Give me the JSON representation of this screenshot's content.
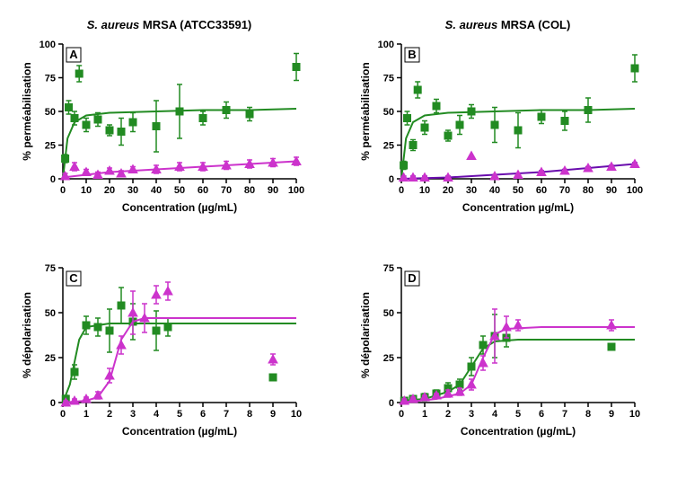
{
  "colors": {
    "green": "#228B22",
    "magenta": "#CC33CC",
    "purple": "#6A0DAD",
    "black": "#000000",
    "bg": "#ffffff"
  },
  "marker": {
    "square_size": 4,
    "triangle_size": 5
  },
  "panels": {
    "A": {
      "title_strain": "S. aureus",
      "title_rest": " MRSA (ATCC33591)",
      "letter": "A",
      "xlabel": "Concentration (µg/mL)",
      "ylabel": "% perméabilisation",
      "xlim": [
        0,
        100
      ],
      "xticks": [
        0,
        10,
        20,
        30,
        40,
        50,
        60,
        70,
        80,
        90,
        100
      ],
      "ylim": [
        0,
        100
      ],
      "yticks": [
        0,
        25,
        50,
        75,
        100
      ],
      "series": [
        {
          "name": "green",
          "color_key": "green",
          "marker": "square",
          "points": [
            {
              "x": 1,
              "y": 15,
              "el": 3,
              "eh": 3
            },
            {
              "x": 2.5,
              "y": 53,
              "el": 5,
              "eh": 5
            },
            {
              "x": 5,
              "y": 45,
              "el": 5,
              "eh": 5
            },
            {
              "x": 7,
              "y": 78,
              "el": 6,
              "eh": 6
            },
            {
              "x": 10,
              "y": 40,
              "el": 5,
              "eh": 5
            },
            {
              "x": 15,
              "y": 44,
              "el": 5,
              "eh": 5
            },
            {
              "x": 20,
              "y": 36,
              "el": 4,
              "eh": 4
            },
            {
              "x": 25,
              "y": 35,
              "el": 10,
              "eh": 10
            },
            {
              "x": 30,
              "y": 42,
              "el": 7,
              "eh": 7
            },
            {
              "x": 40,
              "y": 39,
              "el": 19,
              "eh": 19
            },
            {
              "x": 50,
              "y": 50,
              "el": 20,
              "eh": 20
            },
            {
              "x": 60,
              "y": 45,
              "el": 5,
              "eh": 5
            },
            {
              "x": 70,
              "y": 51,
              "el": 6,
              "eh": 6
            },
            {
              "x": 80,
              "y": 48,
              "el": 5,
              "eh": 5
            },
            {
              "x": 100,
              "y": 83,
              "el": 10,
              "eh": 10
            }
          ],
          "curve": [
            [
              0,
              0
            ],
            [
              2,
              30
            ],
            [
              5,
              42
            ],
            [
              10,
              47
            ],
            [
              20,
              49
            ],
            [
              40,
              50
            ],
            [
              60,
              51
            ],
            [
              80,
              51
            ],
            [
              100,
              52
            ]
          ]
        },
        {
          "name": "magenta",
          "color_key": "magenta",
          "marker": "triangle",
          "points": [
            {
              "x": 1,
              "y": 2,
              "el": 2,
              "eh": 2
            },
            {
              "x": 5,
              "y": 9,
              "el": 3,
              "eh": 3
            },
            {
              "x": 10,
              "y": 5,
              "el": 2,
              "eh": 2
            },
            {
              "x": 15,
              "y": 3,
              "el": 2,
              "eh": 2
            },
            {
              "x": 20,
              "y": 6,
              "el": 2,
              "eh": 2
            },
            {
              "x": 25,
              "y": 4,
              "el": 2,
              "eh": 2
            },
            {
              "x": 30,
              "y": 7,
              "el": 2,
              "eh": 2
            },
            {
              "x": 40,
              "y": 7,
              "el": 3,
              "eh": 3
            },
            {
              "x": 50,
              "y": 9,
              "el": 3,
              "eh": 3
            },
            {
              "x": 60,
              "y": 9,
              "el": 3,
              "eh": 3
            },
            {
              "x": 70,
              "y": 10,
              "el": 3,
              "eh": 3
            },
            {
              "x": 80,
              "y": 11,
              "el": 3,
              "eh": 3
            },
            {
              "x": 90,
              "y": 12,
              "el": 3,
              "eh": 3
            },
            {
              "x": 100,
              "y": 13,
              "el": 3,
              "eh": 3
            }
          ],
          "curve": [
            [
              0,
              1
            ],
            [
              20,
              5
            ],
            [
              40,
              7
            ],
            [
              60,
              9
            ],
            [
              80,
              11
            ],
            [
              100,
              13
            ]
          ]
        }
      ]
    },
    "B": {
      "title_strain": "S. aureus",
      "title_rest": " MRSA (COL)",
      "letter": "B",
      "xlabel": "Concentration µg/mL)",
      "ylabel": "% perméabilisation",
      "xlim": [
        0,
        100
      ],
      "xticks": [
        0,
        10,
        20,
        30,
        40,
        50,
        60,
        70,
        80,
        90,
        100
      ],
      "ylim": [
        0,
        100
      ],
      "yticks": [
        0,
        25,
        50,
        75,
        100
      ],
      "series": [
        {
          "name": "green",
          "color_key": "green",
          "marker": "square",
          "points": [
            {
              "x": 1,
              "y": 10,
              "el": 3,
              "eh": 3
            },
            {
              "x": 2.5,
              "y": 45,
              "el": 5,
              "eh": 5
            },
            {
              "x": 5,
              "y": 25,
              "el": 4,
              "eh": 4
            },
            {
              "x": 7,
              "y": 66,
              "el": 6,
              "eh": 6
            },
            {
              "x": 10,
              "y": 38,
              "el": 5,
              "eh": 5
            },
            {
              "x": 15,
              "y": 54,
              "el": 5,
              "eh": 5
            },
            {
              "x": 20,
              "y": 32,
              "el": 4,
              "eh": 4
            },
            {
              "x": 25,
              "y": 40,
              "el": 7,
              "eh": 7
            },
            {
              "x": 30,
              "y": 50,
              "el": 5,
              "eh": 5
            },
            {
              "x": 40,
              "y": 40,
              "el": 13,
              "eh": 13
            },
            {
              "x": 50,
              "y": 36,
              "el": 13,
              "eh": 13
            },
            {
              "x": 60,
              "y": 46,
              "el": 5,
              "eh": 5
            },
            {
              "x": 70,
              "y": 43,
              "el": 7,
              "eh": 7
            },
            {
              "x": 80,
              "y": 51,
              "el": 9,
              "eh": 9
            },
            {
              "x": 100,
              "y": 82,
              "el": 10,
              "eh": 10
            }
          ],
          "curve": [
            [
              0,
              0
            ],
            [
              2,
              30
            ],
            [
              5,
              42
            ],
            [
              10,
              47
            ],
            [
              20,
              49
            ],
            [
              40,
              50
            ],
            [
              60,
              51
            ],
            [
              80,
              51
            ],
            [
              100,
              52
            ]
          ]
        },
        {
          "name": "purple",
          "color_key": "purple",
          "marker": "triangle",
          "fill_key": "magenta",
          "points": [
            {
              "x": 1,
              "y": 1,
              "el": 1,
              "eh": 1
            },
            {
              "x": 5,
              "y": 1,
              "el": 1,
              "eh": 1
            },
            {
              "x": 10,
              "y": 1,
              "el": 1,
              "eh": 1
            },
            {
              "x": 20,
              "y": 1,
              "el": 1,
              "eh": 1
            },
            {
              "x": 30,
              "y": 17,
              "el": 0,
              "eh": 0
            },
            {
              "x": 40,
              "y": 2,
              "el": 1,
              "eh": 1
            },
            {
              "x": 50,
              "y": 3,
              "el": 1,
              "eh": 1
            },
            {
              "x": 60,
              "y": 5,
              "el": 1,
              "eh": 1
            },
            {
              "x": 70,
              "y": 6,
              "el": 1,
              "eh": 1
            },
            {
              "x": 80,
              "y": 8,
              "el": 1,
              "eh": 1
            },
            {
              "x": 90,
              "y": 9,
              "el": 1,
              "eh": 1
            },
            {
              "x": 100,
              "y": 11,
              "el": 1,
              "eh": 1
            }
          ],
          "curve": [
            [
              0,
              0
            ],
            [
              20,
              1
            ],
            [
              40,
              3
            ],
            [
              60,
              5
            ],
            [
              80,
              8
            ],
            [
              100,
              11
            ]
          ]
        }
      ]
    },
    "C": {
      "title_strain": "",
      "title_rest": "",
      "letter": "C",
      "xlabel": "Concentration (µg/mL)",
      "ylabel": "% dépolarisation",
      "xlim": [
        0,
        10
      ],
      "xticks": [
        0,
        1,
        2,
        3,
        4,
        5,
        6,
        7,
        8,
        9,
        10
      ],
      "ylim": [
        0,
        75
      ],
      "yticks": [
        0,
        25,
        50,
        75
      ],
      "series": [
        {
          "name": "green",
          "color_key": "green",
          "marker": "square",
          "points": [
            {
              "x": 0.125,
              "y": 2,
              "el": 2,
              "eh": 2
            },
            {
              "x": 0.5,
              "y": 17,
              "el": 4,
              "eh": 4
            },
            {
              "x": 1,
              "y": 43,
              "el": 5,
              "eh": 5
            },
            {
              "x": 1.5,
              "y": 42,
              "el": 5,
              "eh": 5
            },
            {
              "x": 2,
              "y": 40,
              "el": 12,
              "eh": 12
            },
            {
              "x": 2.5,
              "y": 54,
              "el": 10,
              "eh": 10
            },
            {
              "x": 3,
              "y": 45,
              "el": 10,
              "eh": 10
            },
            {
              "x": 4,
              "y": 40,
              "el": 11,
              "eh": 11
            },
            {
              "x": 4.5,
              "y": 42,
              "el": 5,
              "eh": 5
            },
            {
              "x": 9,
              "y": 14,
              "el": 0,
              "eh": 0
            }
          ],
          "curve": [
            [
              0,
              0
            ],
            [
              0.3,
              10
            ],
            [
              0.7,
              35
            ],
            [
              1,
              42
            ],
            [
              1.5,
              43
            ],
            [
              2,
              44
            ],
            [
              4,
              44
            ],
            [
              6,
              44
            ],
            [
              10,
              44
            ]
          ]
        },
        {
          "name": "magenta",
          "color_key": "magenta",
          "marker": "triangle",
          "points": [
            {
              "x": 0.125,
              "y": 0,
              "el": 1,
              "eh": 1
            },
            {
              "x": 0.5,
              "y": 1,
              "el": 1,
              "eh": 1
            },
            {
              "x": 1,
              "y": 2,
              "el": 1,
              "eh": 1
            },
            {
              "x": 1.5,
              "y": 4,
              "el": 2,
              "eh": 2
            },
            {
              "x": 2,
              "y": 15,
              "el": 4,
              "eh": 4
            },
            {
              "x": 2.5,
              "y": 32,
              "el": 5,
              "eh": 5
            },
            {
              "x": 3,
              "y": 50,
              "el": 12,
              "eh": 12
            },
            {
              "x": 3.5,
              "y": 47,
              "el": 8,
              "eh": 8
            },
            {
              "x": 4,
              "y": 60,
              "el": 5,
              "eh": 5
            },
            {
              "x": 4.5,
              "y": 62,
              "el": 5,
              "eh": 5
            },
            {
              "x": 9,
              "y": 24,
              "el": 3,
              "eh": 3
            }
          ],
          "curve": [
            [
              0,
              0
            ],
            [
              1,
              1
            ],
            [
              1.5,
              3
            ],
            [
              2,
              12
            ],
            [
              2.5,
              35
            ],
            [
              3,
              45
            ],
            [
              3.5,
              47
            ],
            [
              5,
              47
            ],
            [
              10,
              47
            ]
          ]
        }
      ]
    },
    "D": {
      "title_strain": "",
      "title_rest": "",
      "letter": "D",
      "xlabel": "Concentration (µg/mL)",
      "ylabel": "% dépolarisation",
      "xlim": [
        0,
        10
      ],
      "xticks": [
        0,
        1,
        2,
        3,
        4,
        5,
        6,
        7,
        8,
        9,
        10
      ],
      "ylim": [
        0,
        75
      ],
      "yticks": [
        0,
        25,
        50,
        75
      ],
      "series": [
        {
          "name": "green",
          "color_key": "green",
          "marker": "square",
          "points": [
            {
              "x": 0.125,
              "y": 1,
              "el": 1,
              "eh": 1
            },
            {
              "x": 0.5,
              "y": 2,
              "el": 1,
              "eh": 1
            },
            {
              "x": 1,
              "y": 3,
              "el": 2,
              "eh": 2
            },
            {
              "x": 1.5,
              "y": 5,
              "el": 2,
              "eh": 2
            },
            {
              "x": 2,
              "y": 8,
              "el": 3,
              "eh": 3
            },
            {
              "x": 2.5,
              "y": 10,
              "el": 3,
              "eh": 3
            },
            {
              "x": 3,
              "y": 20,
              "el": 5,
              "eh": 5
            },
            {
              "x": 3.5,
              "y": 32,
              "el": 5,
              "eh": 5
            },
            {
              "x": 4,
              "y": 37,
              "el": 12,
              "eh": 12
            },
            {
              "x": 4.5,
              "y": 36,
              "el": 5,
              "eh": 5
            },
            {
              "x": 9,
              "y": 31,
              "el": 0,
              "eh": 0
            }
          ],
          "curve": [
            [
              0,
              1
            ],
            [
              1,
              2
            ],
            [
              2,
              6
            ],
            [
              2.5,
              10
            ],
            [
              3,
              20
            ],
            [
              3.5,
              30
            ],
            [
              4,
              34
            ],
            [
              5,
              35
            ],
            [
              10,
              35
            ]
          ]
        },
        {
          "name": "magenta",
          "color_key": "magenta",
          "marker": "triangle",
          "points": [
            {
              "x": 0.125,
              "y": 1,
              "el": 1,
              "eh": 1
            },
            {
              "x": 0.5,
              "y": 2,
              "el": 1,
              "eh": 1
            },
            {
              "x": 1,
              "y": 3,
              "el": 1,
              "eh": 1
            },
            {
              "x": 1.5,
              "y": 4,
              "el": 1,
              "eh": 1
            },
            {
              "x": 2,
              "y": 5,
              "el": 2,
              "eh": 2
            },
            {
              "x": 2.5,
              "y": 6,
              "el": 2,
              "eh": 2
            },
            {
              "x": 3,
              "y": 10,
              "el": 3,
              "eh": 3
            },
            {
              "x": 3.5,
              "y": 22,
              "el": 4,
              "eh": 4
            },
            {
              "x": 4,
              "y": 37,
              "el": 15,
              "eh": 15
            },
            {
              "x": 4.5,
              "y": 42,
              "el": 6,
              "eh": 6
            },
            {
              "x": 5,
              "y": 43,
              "el": 3,
              "eh": 3
            },
            {
              "x": 9,
              "y": 43,
              "el": 3,
              "eh": 3
            }
          ],
          "curve": [
            [
              0,
              0
            ],
            [
              1.5,
              2
            ],
            [
              2.5,
              5
            ],
            [
              3,
              10
            ],
            [
              3.5,
              25
            ],
            [
              4,
              38
            ],
            [
              4.5,
              41
            ],
            [
              6,
              42
            ],
            [
              10,
              42
            ]
          ]
        }
      ]
    }
  }
}
